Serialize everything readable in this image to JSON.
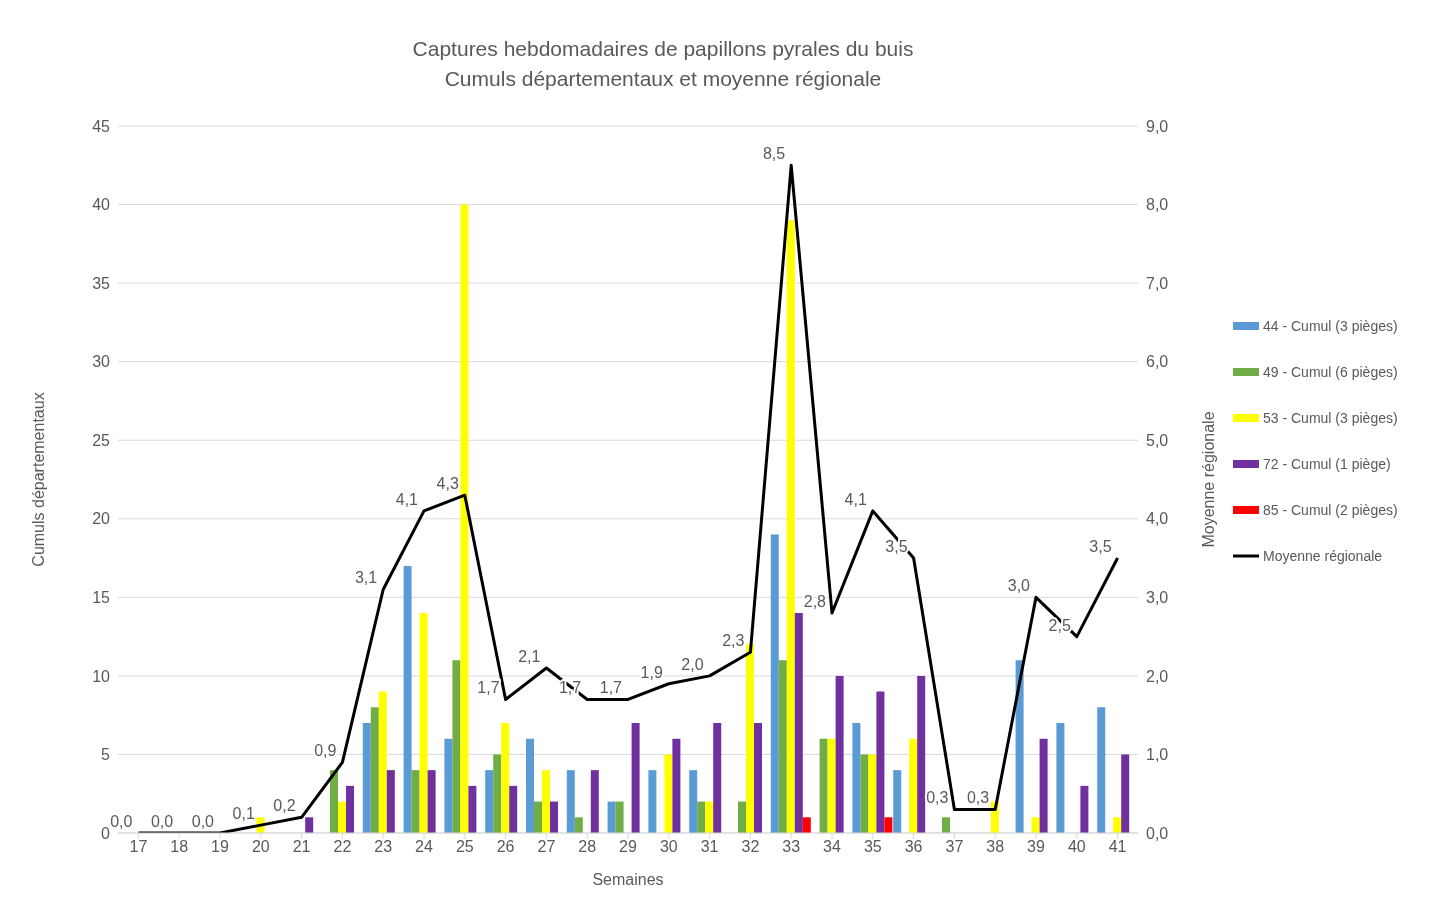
{
  "chart_data": {
    "type": "bar",
    "title": "Captures hebdomadaires de papillons pyrales du buis",
    "subtitle": "Cumuls départementaux et moyenne régionale",
    "xlabel": "Semaines",
    "ylabel": "Cumuls départementaux",
    "y2label": "Moyenne régionale",
    "categories": [
      "17",
      "18",
      "19",
      "20",
      "21",
      "22",
      "23",
      "24",
      "25",
      "26",
      "27",
      "28",
      "29",
      "30",
      "31",
      "32",
      "33",
      "34",
      "35",
      "36",
      "37",
      "38",
      "39",
      "40",
      "41"
    ],
    "series": [
      {
        "name": "44 - Cumul (3 pièges)",
        "color": "#5b9bd5",
        "values": [
          null,
          null,
          null,
          null,
          null,
          null,
          7,
          17,
          6,
          4,
          6,
          4,
          2,
          4,
          4,
          null,
          19,
          null,
          7,
          4,
          null,
          null,
          11,
          7,
          8
        ]
      },
      {
        "name": "49 - Cumul (6 pièges)",
        "color": "#70ad47",
        "values": [
          null,
          null,
          null,
          null,
          null,
          4,
          8,
          4,
          11,
          5,
          2,
          1,
          2,
          null,
          2,
          2,
          11,
          6,
          5,
          null,
          1,
          null,
          null,
          null,
          null
        ]
      },
      {
        "name": "53 - Cumul (3 pièges)",
        "color": "#ffff00",
        "values": [
          null,
          null,
          null,
          1,
          null,
          2,
          9,
          14,
          40,
          7,
          4,
          null,
          null,
          5,
          2,
          12,
          39,
          6,
          5,
          6,
          null,
          2,
          1,
          null,
          1
        ]
      },
      {
        "name": "72 - Cumul (1 piège)",
        "color": "#7030a0",
        "values": [
          null,
          null,
          null,
          null,
          1,
          3,
          4,
          4,
          3,
          3,
          2,
          4,
          7,
          6,
          7,
          7,
          14,
          10,
          9,
          10,
          null,
          null,
          6,
          3,
          5
        ]
      },
      {
        "name": "85 - Cumul (2 pièges)",
        "color": "#ff0000",
        "values": [
          null,
          null,
          null,
          null,
          null,
          null,
          null,
          null,
          null,
          null,
          null,
          null,
          null,
          null,
          null,
          null,
          1,
          null,
          1,
          null,
          null,
          null,
          null,
          null,
          null
        ]
      },
      {
        "name": "Moyenne régionale",
        "type": "line",
        "axis": "y2",
        "color": "#000000",
        "marker": "none",
        "values": [
          0.0,
          0.0,
          0.0,
          0.1,
          0.2,
          0.9,
          3.1,
          4.1,
          4.3,
          1.7,
          2.1,
          1.7,
          1.7,
          1.9,
          2.0,
          2.3,
          8.5,
          2.8,
          4.1,
          3.5,
          0.3,
          0.3,
          3.0,
          2.5,
          3.5
        ],
        "value_labels": [
          "0,0",
          "0,0",
          "0,0",
          "0,1",
          "0,2",
          "0,9",
          "3,1",
          "4,1",
          "4,3",
          "1,7",
          "2,1",
          "1,7",
          "1,7",
          "1,9",
          "2,0",
          "2,3",
          "8,5",
          "2,8",
          "4,1",
          "3,5",
          "0,3",
          "0,3",
          "3,0",
          "2,5",
          "3,5"
        ]
      }
    ],
    "ylim": [
      0,
      45
    ],
    "yticks": [
      0,
      5,
      10,
      15,
      20,
      25,
      30,
      35,
      40,
      45
    ],
    "y2lim": [
      0,
      9
    ],
    "y2ticks": [
      {
        "value": 0,
        "label": "0,0"
      },
      {
        "value": 1,
        "label": "1,0"
      },
      {
        "value": 2,
        "label": "2,0"
      },
      {
        "value": 3,
        "label": "3,0"
      },
      {
        "value": 4,
        "label": "4,0"
      },
      {
        "value": 5,
        "label": "5,0"
      },
      {
        "value": 6,
        "label": "6,0"
      },
      {
        "value": 7,
        "label": "7,0"
      },
      {
        "value": 8,
        "label": "8,0"
      },
      {
        "value": 9,
        "label": "9,0"
      }
    ],
    "grid": "y",
    "legend": "right"
  }
}
